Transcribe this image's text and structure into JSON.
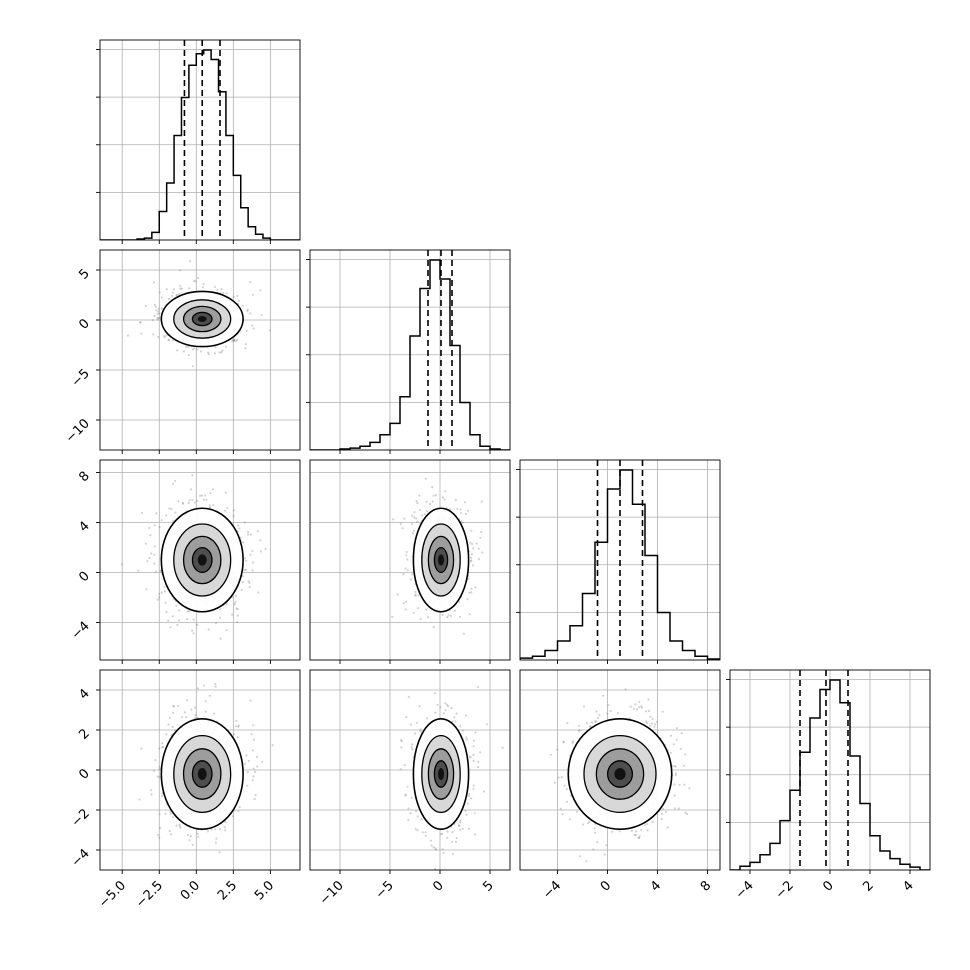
{
  "chart_data": {
    "type": "corner",
    "n_params": 4,
    "colors": {
      "line": "#000000",
      "grid": "#b0b0b0",
      "points": "#7f7f7f",
      "density": "#404040"
    },
    "grid": true,
    "params": [
      {
        "range": [
          -6.5,
          7.0
        ],
        "median": 0.4,
        "q16": -0.8,
        "q84": 1.6,
        "sigma": 1.2,
        "hist_bins": [
          -6.5,
          -6.0,
          -5.5,
          -5.0,
          -4.5,
          -4.0,
          -3.5,
          -3.0,
          -2.5,
          -2.0,
          -1.5,
          -1.0,
          -0.5,
          0.0,
          0.5,
          1.0,
          1.5,
          2.0,
          2.5,
          3.0,
          3.5,
          4.0,
          4.5,
          5.0,
          5.5,
          6.0,
          6.5,
          7.0
        ],
        "hist_values": [
          0,
          0,
          0,
          0,
          0,
          0.005,
          0.01,
          0.04,
          0.15,
          0.3,
          0.55,
          0.75,
          0.92,
          0.98,
          1.0,
          0.95,
          0.78,
          0.55,
          0.34,
          0.17,
          0.07,
          0.03,
          0.01,
          0,
          0,
          0,
          0
        ],
        "ticks": [
          -5.0,
          -2.5,
          0.0,
          2.5,
          5.0
        ],
        "tick_labels": [
          "−5.0",
          "−2.5",
          "0.0",
          "2.5",
          "5.0"
        ]
      },
      {
        "range": [
          -13.0,
          7.0
        ],
        "median": 0.1,
        "q16": -1.2,
        "q84": 1.2,
        "sigma": 1.2,
        "hist_bins": [
          -13,
          -12,
          -11,
          -10,
          -9,
          -8,
          -7,
          -6,
          -5,
          -4,
          -3,
          -2,
          -1,
          0,
          1,
          2,
          3,
          4,
          5,
          6,
          7
        ],
        "hist_values": [
          0,
          0,
          0,
          0.005,
          0.01,
          0.02,
          0.04,
          0.08,
          0.14,
          0.28,
          0.6,
          0.85,
          1.0,
          0.9,
          0.55,
          0.25,
          0.08,
          0.02,
          0.005,
          0
        ],
        "ticks": [
          -10,
          -5,
          0,
          5
        ],
        "tick_labels": [
          "−10",
          "−5",
          "0",
          "5"
        ]
      },
      {
        "range": [
          -7.0,
          9.0
        ],
        "median": 1.0,
        "q16": -0.8,
        "q84": 2.8,
        "sigma": 1.8,
        "hist_bins": [
          -7,
          -6,
          -5,
          -4,
          -3,
          -2,
          -1,
          0,
          1,
          2,
          3,
          4,
          5,
          6,
          7,
          8,
          9
        ],
        "hist_values": [
          0.01,
          0.02,
          0.05,
          0.1,
          0.18,
          0.35,
          0.62,
          0.9,
          1.0,
          0.82,
          0.55,
          0.25,
          0.1,
          0.05,
          0.02,
          0.005
        ],
        "ticks": [
          -4,
          0,
          4,
          8
        ],
        "tick_labels": [
          "−4",
          "0",
          "4",
          "8"
        ]
      },
      {
        "range": [
          -5.0,
          5.0
        ],
        "median": -0.2,
        "q16": -1.5,
        "q84": 0.9,
        "sigma": 1.2,
        "hist_bins": [
          -5.0,
          -4.5,
          -4.0,
          -3.5,
          -3.0,
          -2.5,
          -2.0,
          -1.5,
          -1.0,
          -0.5,
          0.0,
          0.5,
          1.0,
          1.5,
          2.0,
          2.5,
          3.0,
          3.5,
          4.0,
          4.5,
          5.0
        ],
        "hist_values": [
          0,
          0.02,
          0.04,
          0.08,
          0.14,
          0.26,
          0.42,
          0.62,
          0.8,
          0.95,
          1.0,
          0.88,
          0.6,
          0.35,
          0.18,
          0.1,
          0.06,
          0.03,
          0.015,
          0
        ],
        "ticks": [
          -4,
          -2,
          0,
          2,
          4
        ],
        "tick_labels": [
          "−4",
          "−2",
          "0",
          "2",
          "4"
        ]
      }
    ]
  }
}
